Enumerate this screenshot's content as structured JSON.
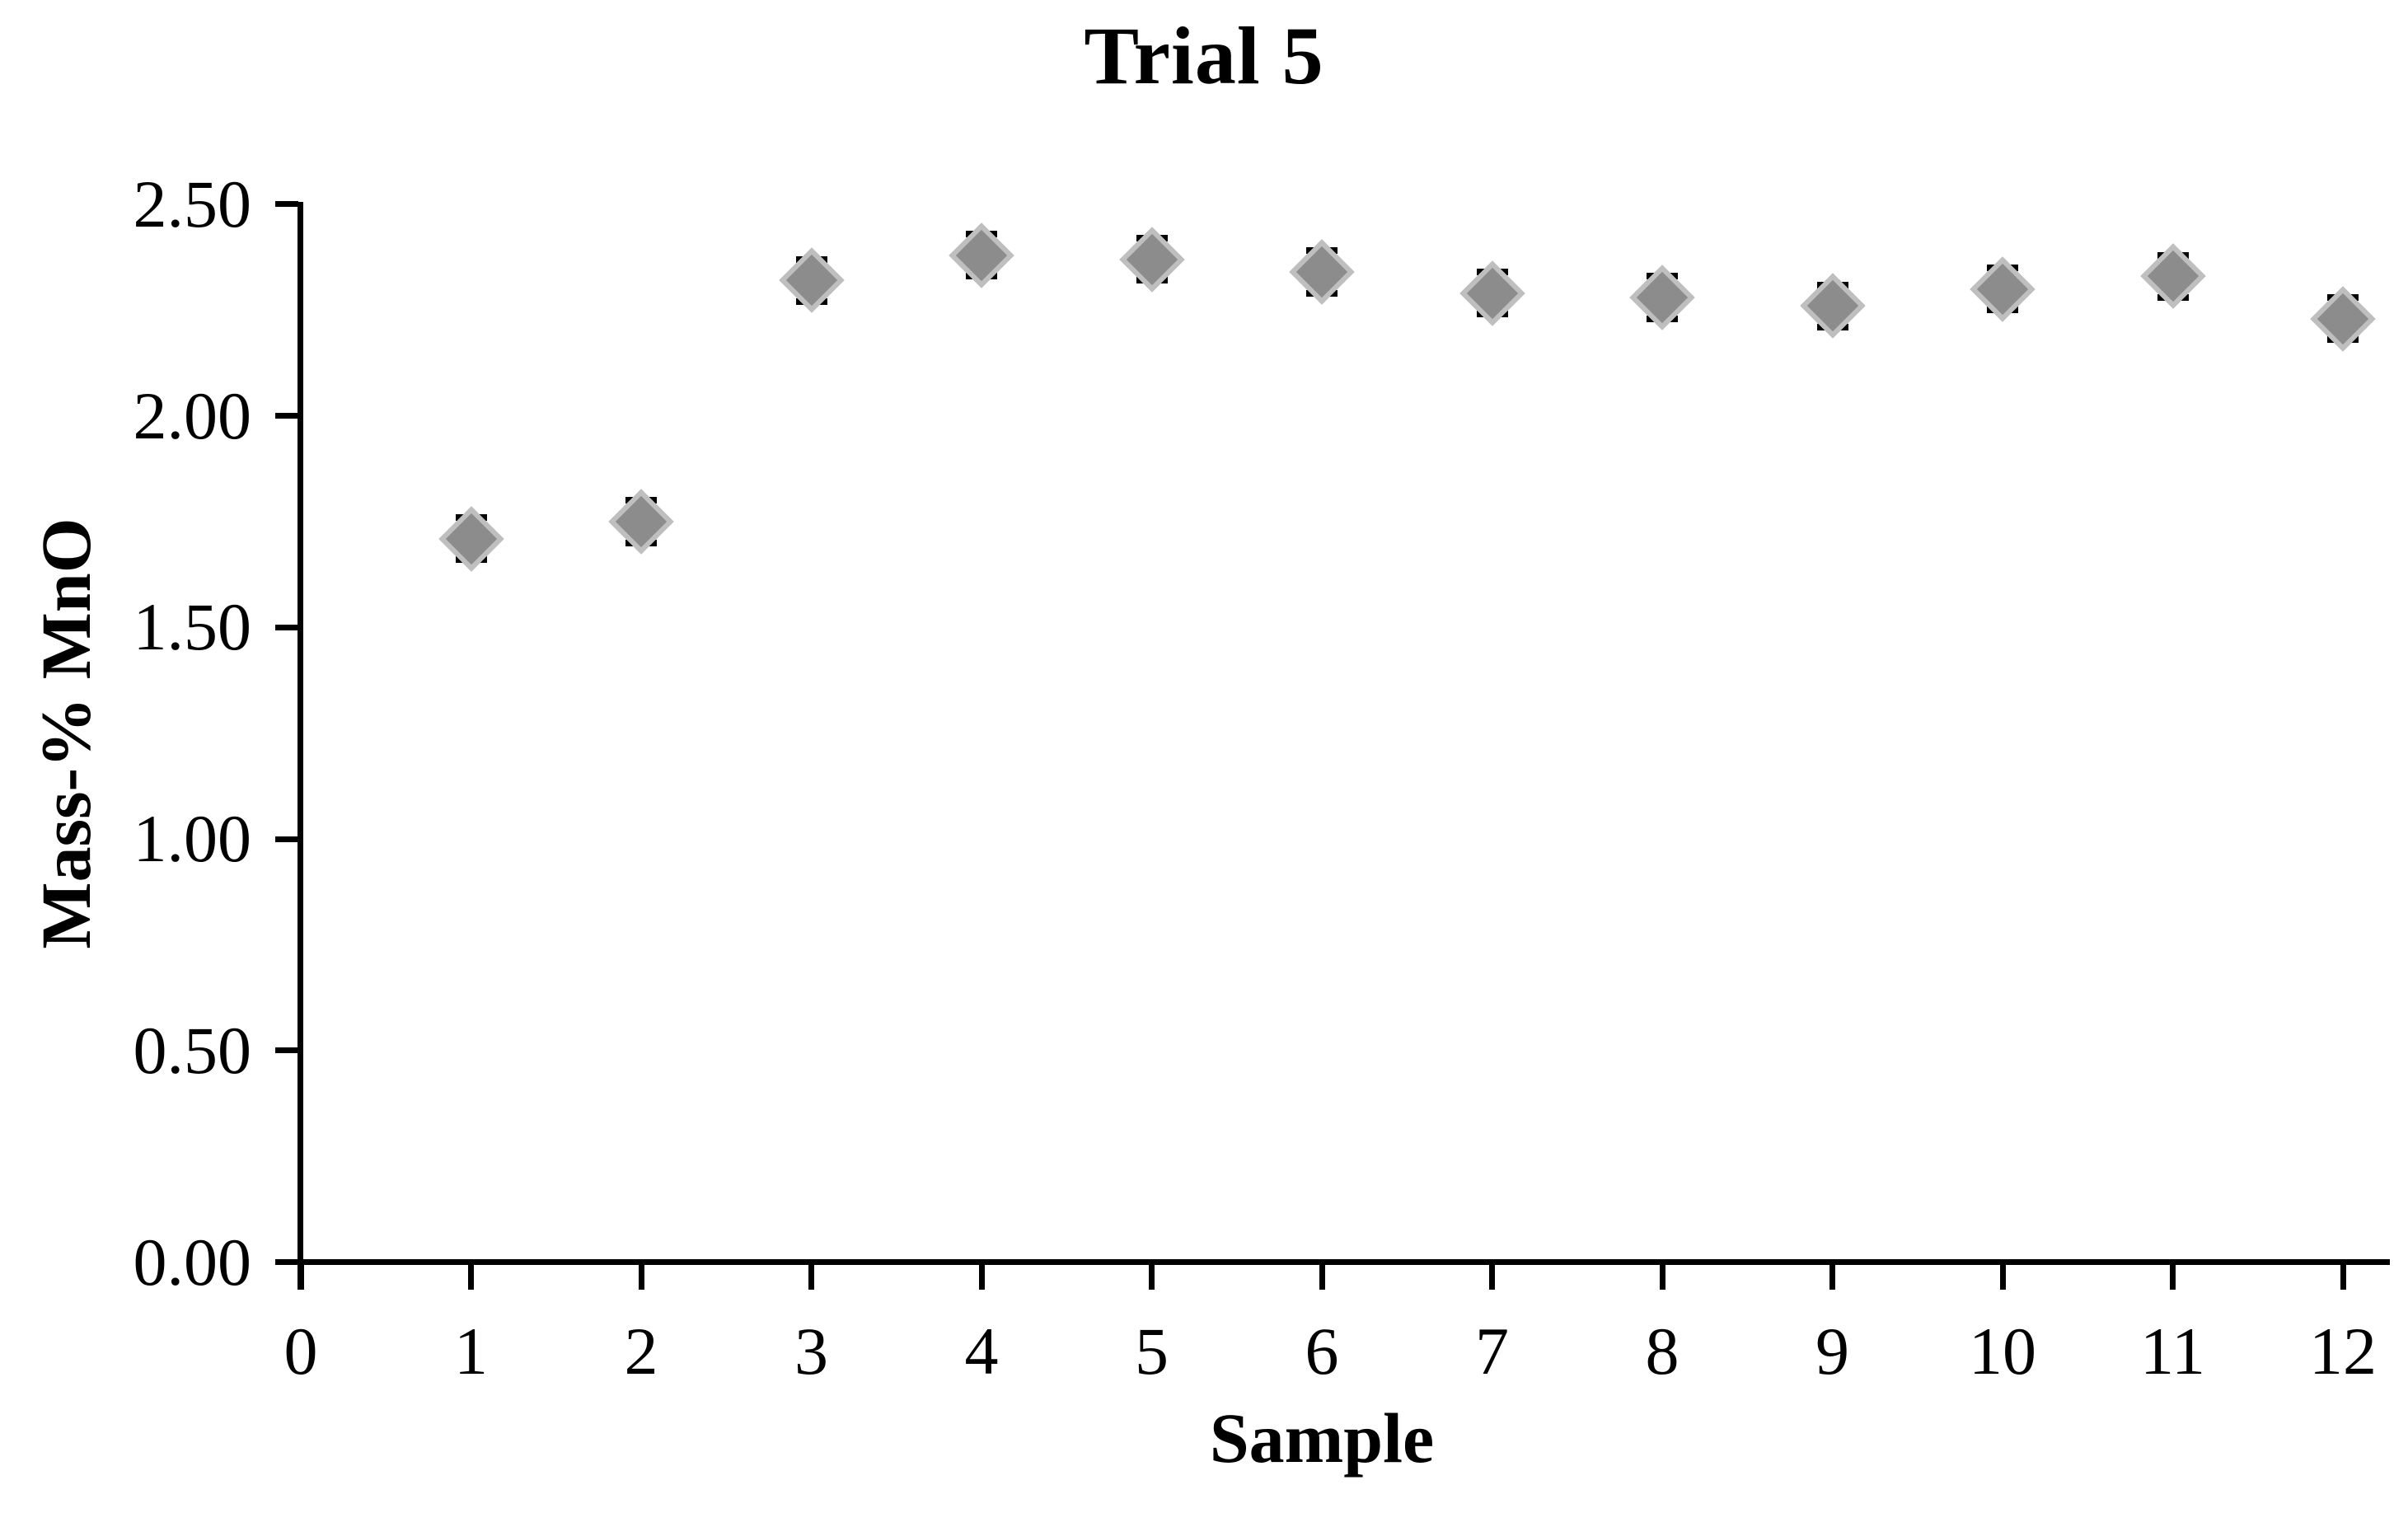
{
  "chart_data": {
    "type": "scatter",
    "title": "Trial 5",
    "xlabel": "Sample",
    "ylabel": "Mass-% MnO",
    "x": [
      1,
      2,
      3,
      4,
      5,
      6,
      7,
      8,
      9,
      10,
      11,
      12
    ],
    "y": [
      1.71,
      1.75,
      2.32,
      2.38,
      2.37,
      2.34,
      2.29,
      2.28,
      2.26,
      2.3,
      2.33,
      2.23
    ],
    "y_error": 0.05,
    "xlim": [
      0,
      12
    ],
    "ylim": [
      0.0,
      2.5
    ],
    "x_tick_labels": [
      "0",
      "1",
      "2",
      "3",
      "4",
      "5",
      "6",
      "7",
      "8",
      "9",
      "10",
      "11",
      "12"
    ],
    "y_tick_labels": [
      "0.00",
      "0.50",
      "1.00",
      "1.50",
      "2.00",
      "2.50"
    ],
    "y_tick_values": [
      0.0,
      0.5,
      1.0,
      1.5,
      2.0,
      2.5
    ],
    "grid": false,
    "legend": null,
    "marker": "diamond",
    "colors": {
      "marker_fill": "#8C8C8C",
      "marker_border": "#BFBFBF",
      "error_bar": "#000000",
      "axis": "#000000",
      "text": "#000000",
      "background": "#FFFFFF"
    }
  }
}
